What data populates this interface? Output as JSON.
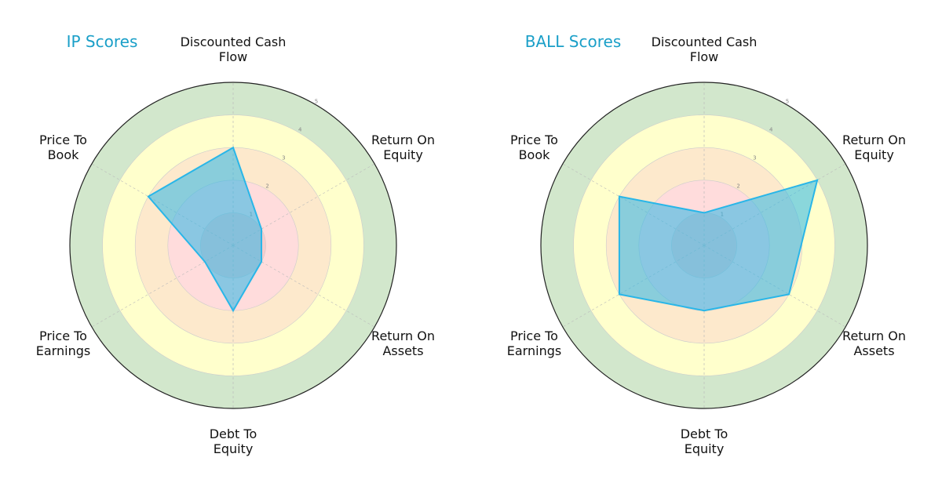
{
  "chart_data": [
    {
      "type": "radar",
      "title": "IP Scores",
      "categories": [
        "Discounted Cash\nFlow",
        "Return On\nEquity",
        "Return On\nAssets",
        "Debt To\nEquity",
        "Price To\nEarnings",
        "Price To\nBook"
      ],
      "values": [
        3,
        1,
        1,
        2,
        1,
        3
      ],
      "color": "#29b6e8",
      "rlim": [
        0,
        5
      ],
      "rticks": [
        1,
        2,
        3,
        4,
        5
      ]
    },
    {
      "type": "radar",
      "title": "BALL Scores",
      "categories": [
        "Discounted Cash\nFlow",
        "Return On\nEquity",
        "Return On\nAssets",
        "Debt To\nEquity",
        "Price To\nEarnings",
        "Price To\nBook"
      ],
      "values": [
        1,
        4,
        3,
        2,
        3,
        3
      ],
      "color": "#29b6e8",
      "rlim": [
        0,
        5
      ],
      "rticks": [
        1,
        2,
        3,
        4,
        5
      ]
    }
  ]
}
